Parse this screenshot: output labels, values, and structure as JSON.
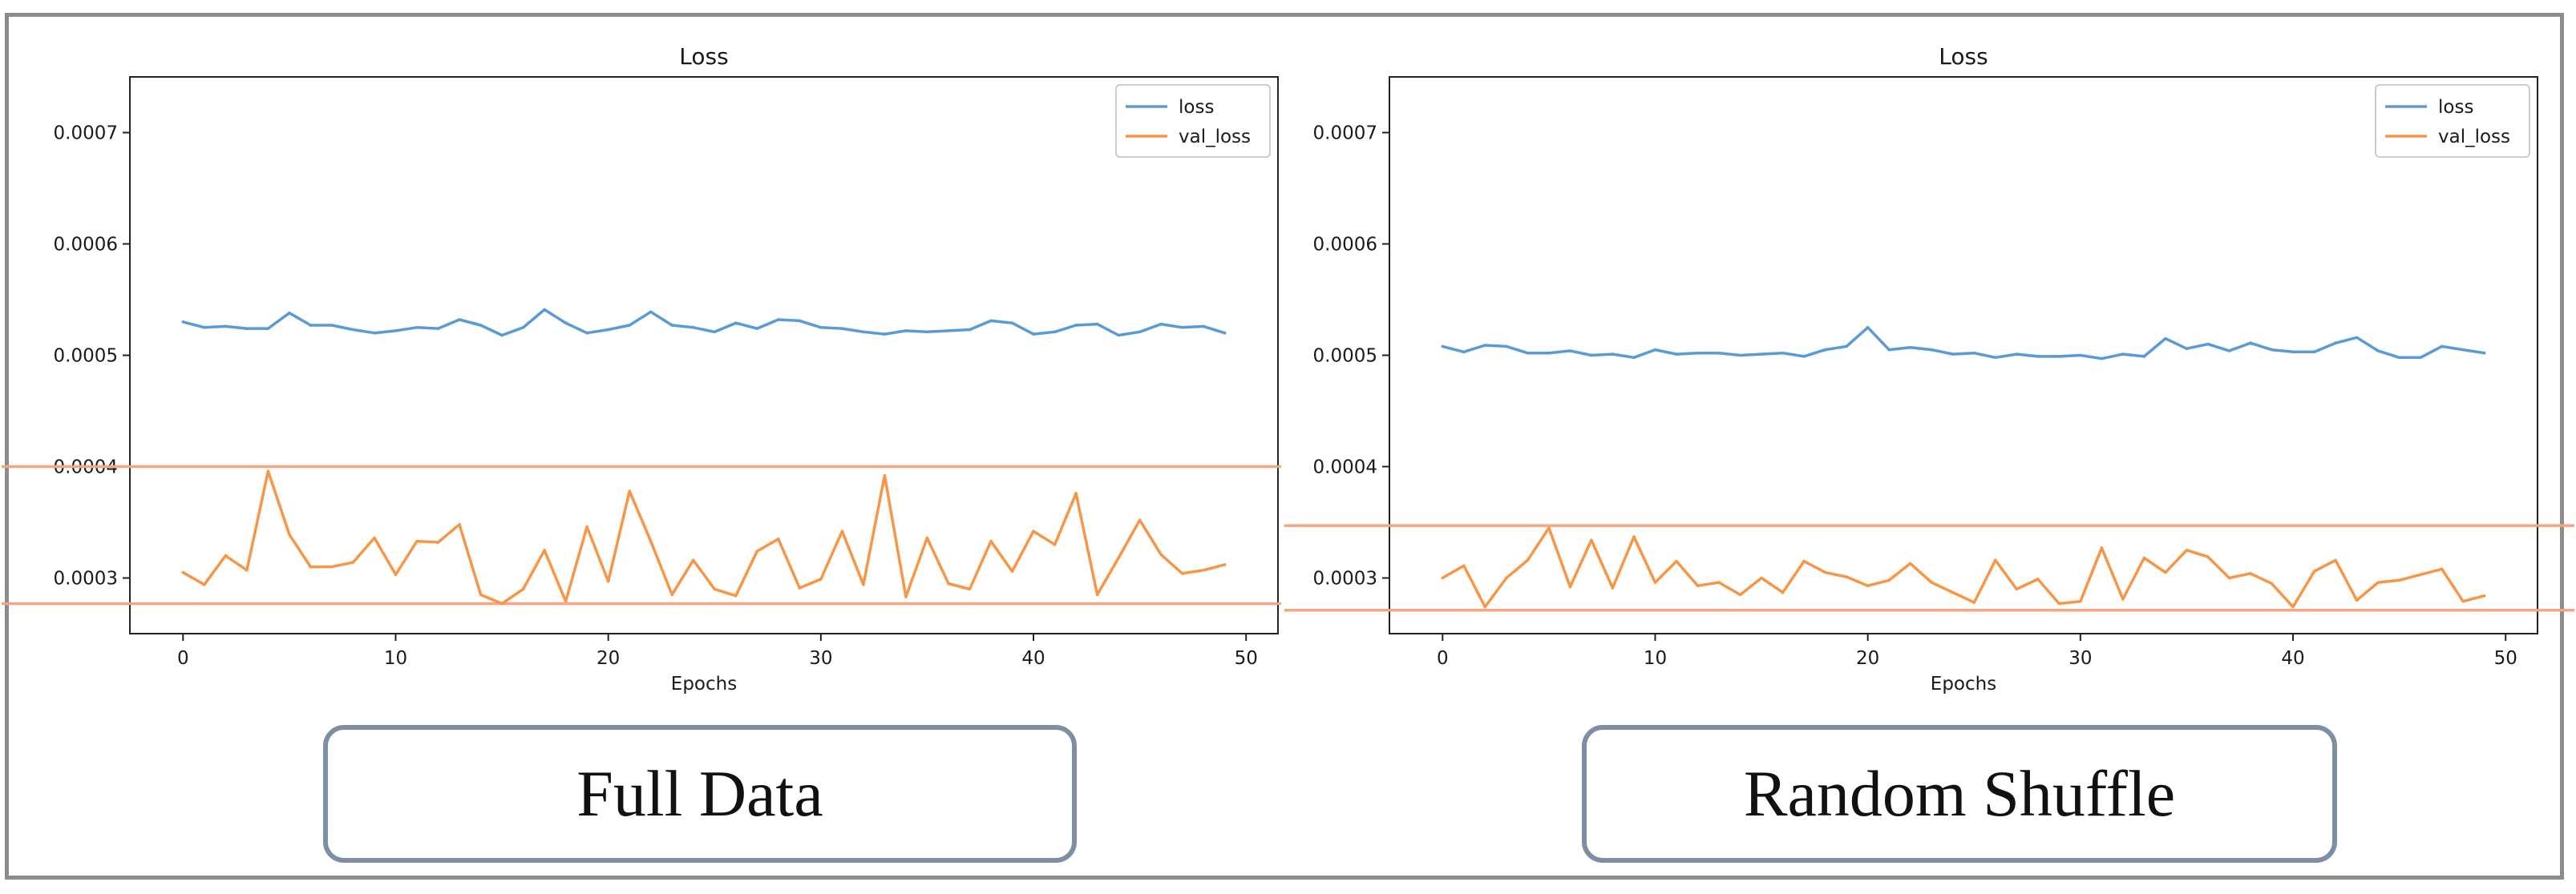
{
  "chart_data": [
    {
      "type": "line",
      "title": "Loss",
      "xlabel": "Epochs",
      "ylabel": "",
      "xlim": [
        -2.5,
        51.5
      ],
      "ylim": [
        0.00025,
        0.00075
      ],
      "xticks": [
        0,
        10,
        20,
        30,
        40,
        50
      ],
      "yticks": [
        0.0003,
        0.0004,
        0.0005,
        0.0006,
        0.0007
      ],
      "ytick_labels": [
        "0.0003",
        "0.0004",
        "0.0005",
        "0.0006",
        "0.0007"
      ],
      "legend": "top-right",
      "grid": false,
      "x": [
        0,
        1,
        2,
        3,
        4,
        5,
        6,
        7,
        8,
        9,
        10,
        11,
        12,
        13,
        14,
        15,
        16,
        17,
        18,
        19,
        20,
        21,
        22,
        23,
        24,
        25,
        26,
        27,
        28,
        29,
        30,
        31,
        32,
        33,
        34,
        35,
        36,
        37,
        38,
        39,
        40,
        41,
        42,
        43,
        44,
        45,
        46,
        47,
        48,
        49
      ],
      "series": [
        {
          "name": "loss",
          "color": "#5b9bd5",
          "values": [
            0.00053,
            0.000525,
            0.000526,
            0.000524,
            0.000524,
            0.000538,
            0.000527,
            0.000527,
            0.000523,
            0.00052,
            0.000522,
            0.000525,
            0.000524,
            0.000532,
            0.000527,
            0.000518,
            0.000525,
            0.000541,
            0.000529,
            0.00052,
            0.000523,
            0.000527,
            0.000539,
            0.000527,
            0.000525,
            0.000521,
            0.000529,
            0.000524,
            0.000532,
            0.000531,
            0.000525,
            0.000524,
            0.000521,
            0.000519,
            0.000522,
            0.000521,
            0.000522,
            0.000523,
            0.000531,
            0.000529,
            0.000519,
            0.000521,
            0.000527,
            0.000528,
            0.000518,
            0.000521,
            0.000528,
            0.000525,
            0.000526,
            0.00052
          ]
        },
        {
          "name": "val_loss",
          "color": "#f79646",
          "values": [
            0.000305,
            0.000294,
            0.00032,
            0.000307,
            0.000396,
            0.000339,
            0.00031,
            0.00031,
            0.000314,
            0.000336,
            0.000303,
            0.000333,
            0.000332,
            0.000348,
            0.000285,
            0.000277,
            0.00029,
            0.000325,
            0.000279,
            0.000346,
            0.000297,
            0.000378,
            0.000333,
            0.000285,
            0.000316,
            0.00029,
            0.000284,
            0.000324,
            0.000335,
            0.000291,
            0.000299,
            0.000342,
            0.000294,
            0.000392,
            0.000283,
            0.000336,
            0.000295,
            0.00029,
            0.000333,
            0.000306,
            0.000342,
            0.00033,
            0.000376,
            0.000285,
            0.000318,
            0.000352,
            0.000321,
            0.000304,
            0.000307,
            0.000312
          ]
        }
      ],
      "reference_lines": {
        "color": "#f4a582",
        "values": [
          0.0004,
          0.000277
        ]
      }
    },
    {
      "type": "line",
      "title": "Loss",
      "xlabel": "Epochs",
      "ylabel": "",
      "xlim": [
        -2.5,
        51.5
      ],
      "ylim": [
        0.00025,
        0.00075
      ],
      "xticks": [
        0,
        10,
        20,
        30,
        40,
        50
      ],
      "yticks": [
        0.0003,
        0.0004,
        0.0005,
        0.0006,
        0.0007
      ],
      "ytick_labels": [
        "0.0003",
        "0.0004",
        "0.0005",
        "0.0006",
        "0.0007"
      ],
      "legend": "top-right",
      "grid": false,
      "x": [
        0,
        1,
        2,
        3,
        4,
        5,
        6,
        7,
        8,
        9,
        10,
        11,
        12,
        13,
        14,
        15,
        16,
        17,
        18,
        19,
        20,
        21,
        22,
        23,
        24,
        25,
        26,
        27,
        28,
        29,
        30,
        31,
        32,
        33,
        34,
        35,
        36,
        37,
        38,
        39,
        40,
        41,
        42,
        43,
        44,
        45,
        46,
        47,
        48,
        49
      ],
      "series": [
        {
          "name": "loss",
          "color": "#5b9bd5",
          "values": [
            0.000508,
            0.000503,
            0.000509,
            0.000508,
            0.000502,
            0.000502,
            0.000504,
            0.0005,
            0.000501,
            0.000498,
            0.000505,
            0.000501,
            0.000502,
            0.000502,
            0.0005,
            0.000501,
            0.000502,
            0.000499,
            0.000505,
            0.000508,
            0.000525,
            0.000505,
            0.000507,
            0.000505,
            0.000501,
            0.000502,
            0.000498,
            0.000501,
            0.000499,
            0.000499,
            0.0005,
            0.000497,
            0.000501,
            0.000499,
            0.000515,
            0.000506,
            0.00051,
            0.000504,
            0.000511,
            0.000505,
            0.000503,
            0.000503,
            0.000511,
            0.000516,
            0.000504,
            0.000498,
            0.000498,
            0.000508,
            0.000505,
            0.000502
          ]
        },
        {
          "name": "val_loss",
          "color": "#f79646",
          "values": [
            0.0003,
            0.000311,
            0.000274,
            0.0003,
            0.000316,
            0.000345,
            0.000292,
            0.000334,
            0.000291,
            0.000337,
            0.000296,
            0.000315,
            0.000293,
            0.000296,
            0.000285,
            0.0003,
            0.000287,
            0.000315,
            0.000305,
            0.000301,
            0.000293,
            0.000298,
            0.000313,
            0.000296,
            0.000287,
            0.000278,
            0.000316,
            0.00029,
            0.000299,
            0.000277,
            0.000279,
            0.000327,
            0.000281,
            0.000318,
            0.000305,
            0.000325,
            0.000319,
            0.0003,
            0.000304,
            0.000295,
            0.000274,
            0.000306,
            0.000316,
            0.00028,
            0.000296,
            0.000298,
            0.000303,
            0.000308,
            0.000279,
            0.000284
          ]
        }
      ],
      "reference_lines": {
        "color": "#f4a582",
        "values": [
          0.000347,
          0.000271
        ]
      }
    }
  ],
  "captions": {
    "left": "Full Data",
    "right": "Random Shuffle"
  }
}
